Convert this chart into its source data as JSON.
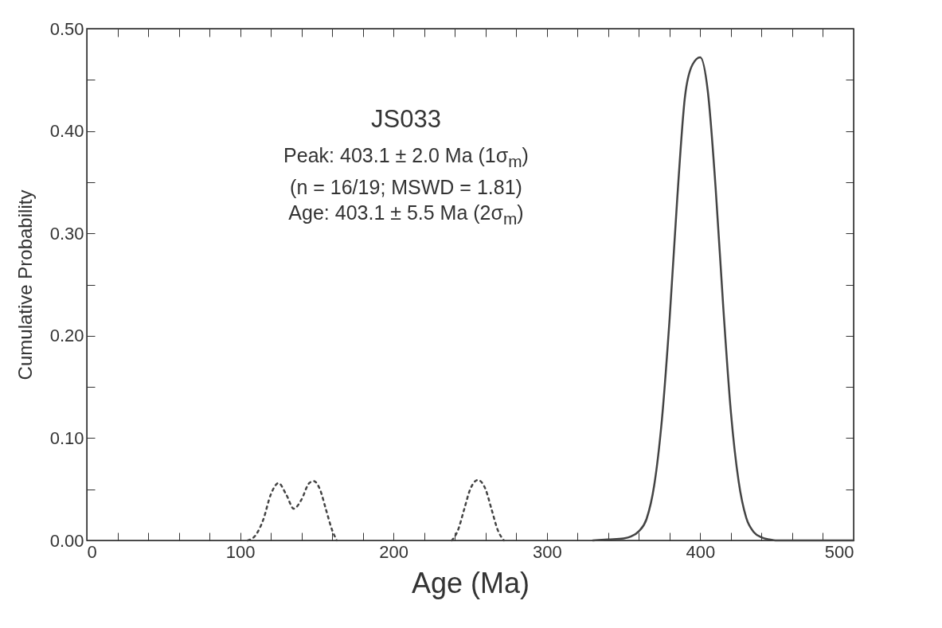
{
  "chart_data": {
    "type": "line",
    "xlabel": "Age (Ma)",
    "ylabel": "Cumulative Probability",
    "annotations": [
      "JS033",
      "Peak: 403.1 ± 2.0 Ma (1σ$_{m}$)",
      "(n = 16/19; MSWD = 1.81)",
      "Age: 403.1 ± 5.5 Ma (2σ$_{m}$)"
    ],
    "series": [
      {
        "color": "#444444",
        "line_style": "solid",
        "x": [
          330,
          340,
          350,
          355,
          360,
          365,
          370,
          375,
          380,
          385,
          390,
          395,
          400,
          405,
          410,
          415,
          420,
          425,
          430,
          435,
          440,
          445,
          450,
          460,
          500
        ],
        "values": [
          0,
          0.001,
          0.002,
          0.004,
          0.009,
          0.021,
          0.054,
          0.118,
          0.216,
          0.334,
          0.433,
          0.465,
          0.472,
          0.438,
          0.345,
          0.228,
          0.125,
          0.058,
          0.022,
          0.008,
          0.003,
          0.001,
          0,
          0,
          0
        ]
      },
      {
        "color": "#444444",
        "line_style": "dotted",
        "x": [
          105,
          110,
          115,
          120,
          125,
          130,
          135,
          140,
          145,
          148,
          152,
          156,
          160,
          163,
          200,
          238,
          242,
          246,
          250,
          255,
          260,
          264,
          268,
          272
        ],
        "values": [
          0,
          0.005,
          0.02,
          0.045,
          0.056,
          0.045,
          0.031,
          0.04,
          0.056,
          0.058,
          0.05,
          0.03,
          0.01,
          0,
          null,
          0,
          0.01,
          0.03,
          0.05,
          0.059,
          0.05,
          0.03,
          0.01,
          0
        ]
      }
    ],
    "xlim": [
      0,
      500
    ],
    "xticks": [
      0,
      {
        "value": 20,
        "label": null
      },
      {
        "value": 40,
        "label": null
      },
      {
        "value": 60,
        "label": null
      },
      {
        "value": 80,
        "label": null
      },
      100,
      {
        "value": 120,
        "label": null
      },
      {
        "value": 140,
        "label": null
      },
      {
        "value": 160,
        "label": null
      },
      {
        "value": 180,
        "label": null
      },
      200,
      {
        "value": 220,
        "label": null
      },
      {
        "value": 240,
        "label": null
      },
      {
        "value": 260,
        "label": null
      },
      {
        "value": 280,
        "label": null
      },
      300,
      {
        "value": 320,
        "label": null
      },
      {
        "value": 340,
        "label": null
      },
      {
        "value": 360,
        "label": null
      },
      {
        "value": 380,
        "label": null
      },
      400,
      {
        "value": 420,
        "label": null
      },
      {
        "value": 440,
        "label": null
      },
      {
        "value": 460,
        "label": null
      },
      {
        "value": 480,
        "label": null
      },
      500
    ],
    "ylim": [
      0,
      0.5
    ],
    "yticks": [
      {
        "value": 0,
        "label": "0.00"
      },
      {
        "value": 0.05,
        "label": null
      },
      {
        "value": 0.1,
        "label": "0.10"
      },
      {
        "value": 0.15,
        "label": null
      },
      {
        "value": 0.2,
        "label": "0.20"
      },
      {
        "value": 0.25,
        "label": null
      },
      {
        "value": 0.3,
        "label": "0.30"
      },
      {
        "value": 0.35,
        "label": null
      },
      {
        "value": 0.4,
        "label": "0.40"
      },
      {
        "value": 0.45,
        "label": null
      },
      {
        "value": 0.5,
        "label": "0.50"
      }
    ],
    "grid": false,
    "marker": "none"
  }
}
